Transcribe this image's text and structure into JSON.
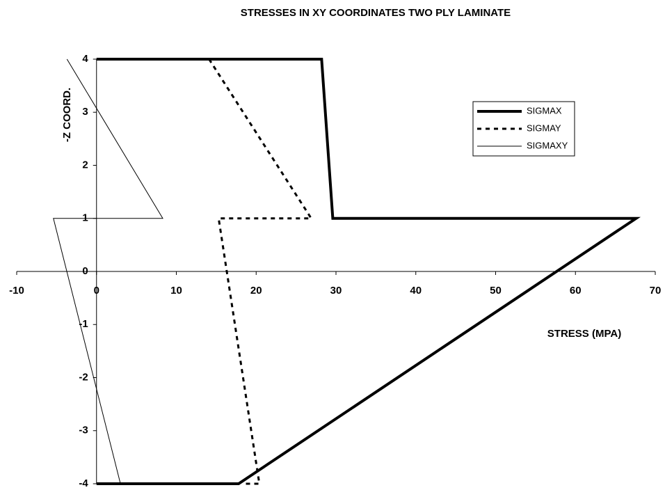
{
  "chart_data": {
    "type": "line",
    "title": "STRESSES IN XY COORDINATES TWO PLY LAMINATE",
    "x_label": "STRESS (MPA)",
    "y_label": "-Z COORD.",
    "xlim": [
      -10,
      70
    ],
    "xticks": [
      -10,
      0,
      10,
      20,
      30,
      40,
      50,
      60,
      70
    ],
    "ylim": [
      -4,
      4
    ],
    "yticks": [
      -4,
      -3,
      -2,
      -1,
      0,
      1,
      2,
      3,
      4
    ],
    "legend": "upper right",
    "series": [
      {
        "name": "SIGMAX",
        "color": "#000000",
        "style": "thick",
        "x": [
          0,
          28.2,
          29.6,
          67.6,
          17.8,
          0
        ],
        "values": [
          4,
          4,
          1,
          1,
          -4,
          -4
        ]
      },
      {
        "name": "SIGMAY",
        "color": "#000000",
        "style": "dashed",
        "x": [
          14.1,
          26.9,
          15.3,
          20.4,
          18.5
        ],
        "values": [
          4,
          1,
          1,
          -4,
          -4
        ]
      },
      {
        "name": "SIGMAXY",
        "color": "#000000",
        "style": "thin",
        "x": [
          -3.7,
          8.3,
          -5.4,
          3.0
        ],
        "values": [
          4,
          1,
          1,
          -4
        ]
      }
    ]
  }
}
